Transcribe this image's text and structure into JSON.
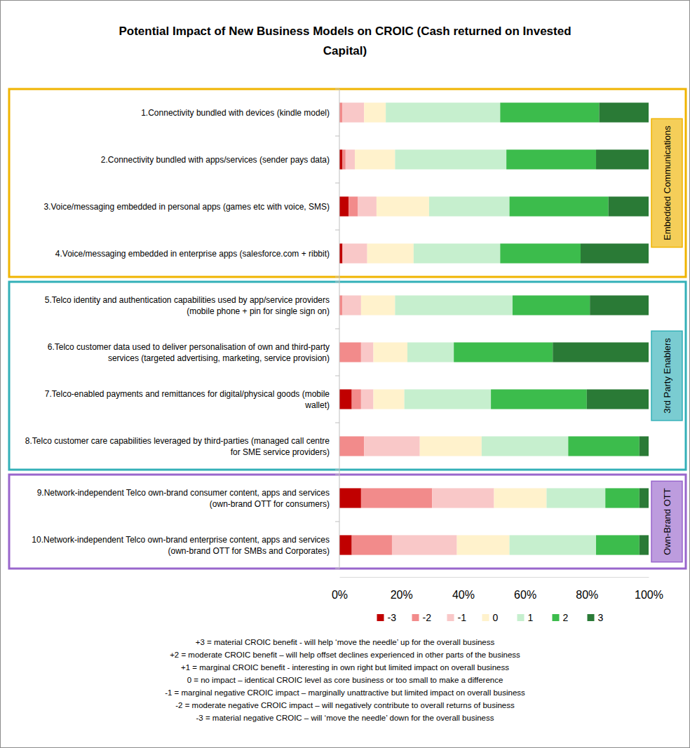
{
  "chart_data": {
    "type": "bar",
    "orientation": "horizontal",
    "stacked": true,
    "grid": false,
    "legend": "bottom",
    "title": "Potential Impact of New Business Models on CROIC (Cash returned on Invested Capital)",
    "categories": [
      "1.Connectivity bundled with devices (kindle model)",
      "2.Connectivity bundled with apps/services (sender pays data)",
      "3.Voice/messaging embedded in personal apps (games etc with voice, SMS)",
      "4.Voice/messaging embedded in enterprise apps (salesforce.com + ribbit)",
      "5.Telco identity and authentication capabilities used by app/service providers (mobile phone + pin for single sign on)",
      "6.Telco customer data used to deliver personalisation of own and third-party services (targeted advertising, marketing, service provision)",
      "7.Telco-enabled payments and remittances for digital/physical goods (mobile wallet)",
      "8.Telco customer care capabilities leveraged by third-parties (managed call centre for SME service providers)",
      "9.Network-independent Telco own-brand consumer content, apps and services (own-brand OTT for consumers)",
      "10.Network-independent Telco own-brand enterprise content, apps and services (own-brand OTT for SMBs and Corporates)"
    ],
    "groups": [
      {
        "name": "Embedded Communications",
        "color": "#f0b400",
        "count": 4
      },
      {
        "name": "3rd Party Enablers",
        "color": "#33b0b8",
        "count": 4
      },
      {
        "name": "Own-Brand OTT",
        "color": "#9966cc",
        "count": 2
      }
    ],
    "series": [
      {
        "name": "-3",
        "color": "#c00000",
        "values": [
          0,
          1,
          3,
          1,
          0,
          0,
          4,
          0,
          7,
          4
        ]
      },
      {
        "name": "-2",
        "color": "#f28b8b",
        "values": [
          1,
          1,
          3,
          0,
          1,
          7,
          3,
          8,
          23,
          13
        ]
      },
      {
        "name": "-1",
        "color": "#f9c8c8",
        "values": [
          7,
          3,
          6,
          8,
          6,
          4,
          4,
          18,
          20,
          21
        ]
      },
      {
        "name": "0",
        "color": "#fff2cc",
        "values": [
          7,
          13,
          17,
          15,
          11,
          11,
          10,
          20,
          17,
          17
        ]
      },
      {
        "name": "1",
        "color": "#c6efce",
        "values": [
          37,
          36,
          26,
          28,
          38,
          15,
          28,
          28,
          19,
          28
        ]
      },
      {
        "name": "2",
        "color": "#3cbc4c",
        "values": [
          32,
          29,
          32,
          26,
          25,
          32,
          31,
          23,
          11,
          14
        ]
      },
      {
        "name": "3",
        "color": "#2a7a36",
        "values": [
          16,
          17,
          13,
          22,
          19,
          31,
          20,
          3,
          3,
          3
        ]
      }
    ],
    "xlim": [
      0,
      100
    ],
    "xticks": [
      {
        "value": 0,
        "label": "0%"
      },
      {
        "value": 20,
        "label": "20%"
      },
      {
        "value": 40,
        "label": "40%"
      },
      {
        "value": 60,
        "label": "60%"
      },
      {
        "value": 80,
        "label": "80%"
      },
      {
        "value": 100,
        "label": "100%"
      }
    ],
    "annotations": [
      "+3 = material CROIC benefit - will help ‘move the needle’ up for the overall business",
      "+2 = moderate CROIC benefit – will help offset declines experienced in other parts of the business",
      "+1 = marginal CROIC benefit - interesting in own right but limited impact on overall business",
      "0 = no impact – identical CROIC level as core business or too small to make a difference",
      "-1 = marginal negative CROIC impact – marginally unattractive but limited impact on overall business",
      "-2 = moderate negative CROIC impact – will negatively contribute to overall returns of business",
      "-3 = material negative CROIC – will ‘move the needle’ down for the overall business"
    ]
  }
}
